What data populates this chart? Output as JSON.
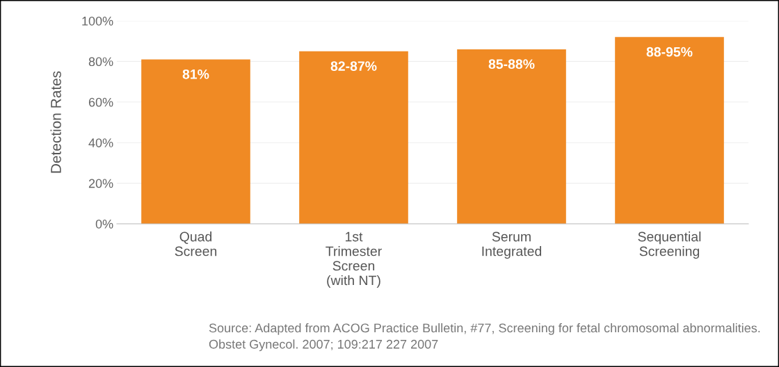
{
  "chart_data": {
    "type": "bar",
    "ylabel": "Detection Rates",
    "categories": [
      "Quad\nScreen",
      "1st\nTrimester\nScreen\n(with NT)",
      "Serum\nIntegrated",
      "Sequential\nScreening"
    ],
    "values": [
      81,
      85,
      86,
      92
    ],
    "color": "#f08a24",
    "ylim": [
      0,
      100
    ],
    "yticks": [
      {
        "value": 0,
        "label": "0%"
      },
      {
        "value": 20,
        "label": "20%"
      },
      {
        "value": 40,
        "label": "40%"
      },
      {
        "value": 60,
        "label": "60%"
      },
      {
        "value": 80,
        "label": "80%"
      },
      {
        "value": 100,
        "label": "100%"
      }
    ],
    "grid": "y",
    "annotations": [
      {
        "text": "81%",
        "x": "Quad\nScreen",
        "y": 81
      },
      {
        "text": "82-87%",
        "x": "1st\nTrimester\nScreen\n(with NT)",
        "y": 85
      },
      {
        "text": "85-88%",
        "x": "Serum\nIntegrated",
        "y": 86
      },
      {
        "text": "88-95%",
        "x": "Sequential\nScreening",
        "y": 92
      },
      "Source: Adapted from ACOG Practice Bulletin, #77, Screening for fetal chromosomal abnormalities. Obstet Gynecol. 2007; 109:217 227 2007"
    ]
  }
}
